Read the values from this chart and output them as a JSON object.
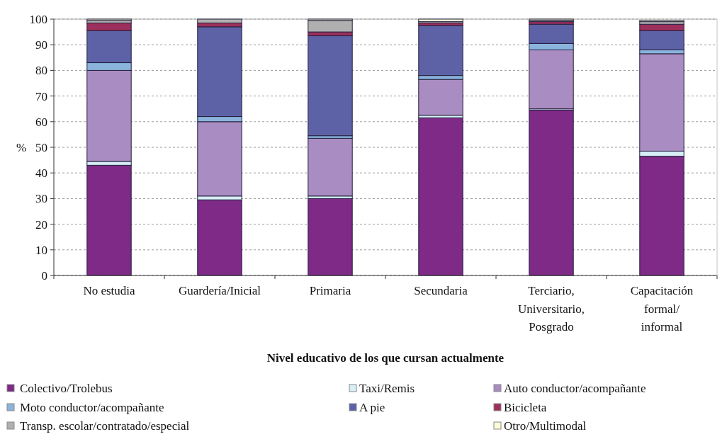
{
  "chart_data": {
    "type": "bar",
    "stacked": true,
    "categories": [
      "No estudia",
      "Guardería/Inicial",
      "Primaria",
      "Secundaria",
      "Terciario, Universitario, Posgrado",
      "Capacitación formal/ informal"
    ],
    "series": [
      {
        "name": "Colectivo/Trolebus",
        "color": "#7e2a86",
        "values": [
          43,
          29.5,
          30,
          61.5,
          64.5,
          46.5
        ]
      },
      {
        "name": "Taxi/Remis",
        "color": "#d6eef5",
        "values": [
          1.5,
          1.5,
          1,
          1,
          0.5,
          2
        ]
      },
      {
        "name": "Auto conductor/acompañante",
        "color": "#a98cc2",
        "values": [
          35.5,
          29,
          22.5,
          14,
          23,
          38
        ]
      },
      {
        "name": "Moto conductor/acompañante",
        "color": "#8ab4dc",
        "values": [
          3,
          2,
          1,
          1.5,
          2.5,
          1.5
        ]
      },
      {
        "name": "A pie",
        "color": "#5d62a6",
        "values": [
          12.5,
          35,
          39,
          19.5,
          7.5,
          7.5
        ]
      },
      {
        "name": "Bicicleta",
        "color": "#9c2f5c",
        "values": [
          3,
          1.5,
          1.5,
          1,
          1,
          2.5
        ]
      },
      {
        "name": "Transp. escolar/contratado/especial",
        "color": "#b0b0b0",
        "values": [
          1,
          1.5,
          4.5,
          0.5,
          0.5,
          1
        ]
      },
      {
        "name": "Otro/Multimodal",
        "color": "#fbfbd6",
        "values": [
          0.5,
          null,
          0.5,
          1,
          0.5,
          0.5
        ]
      }
    ],
    "ylim": [
      0,
      100
    ],
    "yticks": [
      0,
      10,
      20,
      30,
      40,
      50,
      60,
      70,
      80,
      90,
      100
    ],
    "ylabel": "%",
    "xlabel": "Nivel educativo de los que cursan actualmente",
    "grid": "y",
    "legend": "bottom"
  }
}
